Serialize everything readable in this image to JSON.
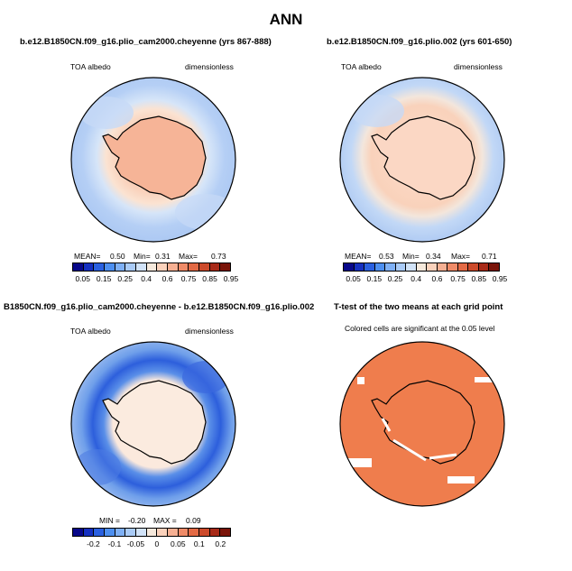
{
  "title": "ANN",
  "panels": [
    {
      "title": "b.e12.B1850CN.f09_g16.plio_cam2000.cheyenne (yrs 867-888)",
      "left_label": "TOA albedo",
      "right_label": "dimensionless",
      "stats": {
        "mean_label": "MEAN=",
        "mean": "0.50",
        "min_label": "Min=",
        "min": "0.31",
        "max_label": "Max=",
        "max": "0.73"
      }
    },
    {
      "title": "b.e12.B1850CN.f09_g16.plio.002 (yrs 601-650)",
      "left_label": "TOA albedo",
      "right_label": "dimensionless",
      "stats": {
        "mean_label": "MEAN=",
        "mean": "0.53",
        "min_label": "Min=",
        "min": "0.34",
        "max_label": "Max=",
        "max": "0.71"
      }
    },
    {
      "title": "B1850CN.f09_g16.plio_cam2000.cheyenne - b.e12.B1850CN.f09_g16.plio.002",
      "left_label": "TOA albedo",
      "right_label": "dimensionless",
      "stats": {
        "min_label": "MIN =",
        "min": "-0.20",
        "max_label": "MAX =",
        "max": "0.09"
      }
    },
    {
      "title": "T-test of the two means at each grid point",
      "note": "Colored cells are significant at the 0.05 level"
    }
  ],
  "colorbar_abs": {
    "colors": [
      "#08088a",
      "#1530c0",
      "#2a60e0",
      "#4d8ff0",
      "#7fb0f5",
      "#aacbf7",
      "#d2e3f8",
      "#f6e9dc",
      "#fbd2bc",
      "#f6b093",
      "#ef8b68",
      "#e36a45",
      "#cc4a2b",
      "#a82a18",
      "#7a1409"
    ],
    "ticks": [
      "0.05",
      "0.15",
      "0.25",
      "0.4",
      "0.6",
      "0.75",
      "0.85",
      "0.95"
    ]
  },
  "colorbar_diff": {
    "colors": [
      "#08088a",
      "#1530c0",
      "#2a60e0",
      "#4d8ff0",
      "#7fb0f5",
      "#aacbf7",
      "#d2e3f8",
      "#f6e9dc",
      "#fbd2bc",
      "#f6b093",
      "#ef8b68",
      "#e36a45",
      "#cc4a2b",
      "#a82a18",
      "#7a1409"
    ],
    "ticks": [
      "-0.2",
      "-0.1",
      "-0.05",
      "0",
      "0.05",
      "0.1",
      "0.2"
    ]
  }
}
